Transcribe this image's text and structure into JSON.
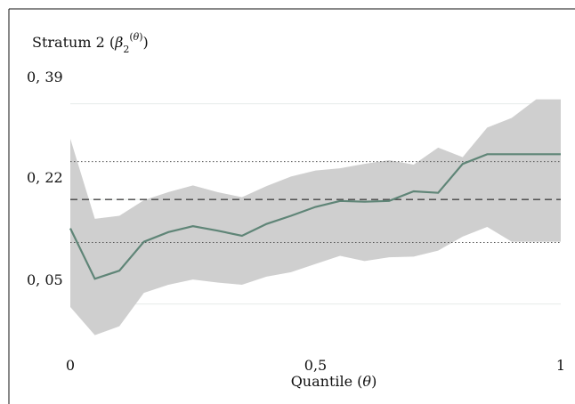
{
  "chart_data": {
    "type": "line",
    "title": "Stratum 2 (β₂^(θ))",
    "xlabel": "Quantile (θ)",
    "ylabel": "",
    "xlim": [
      0,
      1
    ],
    "ylim": [
      -0.012,
      0.33
    ],
    "x_ticks": [
      {
        "value": 0,
        "label": "0"
      },
      {
        "value": 0.5,
        "label": "0,5"
      },
      {
        "value": 1,
        "label": "1"
      }
    ],
    "y_ticks": [
      {
        "value": 0.05,
        "label": "0, 05"
      },
      {
        "value": 0.22,
        "label": "0, 22"
      },
      {
        "value": 0.39,
        "label": "0, 39"
      }
    ],
    "x": [
      0,
      0.05,
      0.1,
      0.15,
      0.2,
      0.25,
      0.3,
      0.35,
      0.4,
      0.45,
      0.5,
      0.55,
      0.6,
      0.65,
      0.7,
      0.75,
      0.8,
      0.85,
      0.9,
      0.95,
      1
    ],
    "series": [
      {
        "role": "estimate",
        "color": "#5f8577",
        "values": [
          0.142,
          0.074,
          0.085,
          0.124,
          0.137,
          0.145,
          0.139,
          0.132,
          0.148,
          0.159,
          0.171,
          0.179,
          0.178,
          0.179,
          0.192,
          0.19,
          0.229,
          0.242,
          0.242,
          0.242,
          0.242
        ]
      }
    ],
    "band": {
      "color": "#cfcfcf",
      "lower": [
        0.036,
        -0.002,
        0.01,
        0.055,
        0.066,
        0.073,
        0.069,
        0.066,
        0.077,
        0.083,
        0.094,
        0.105,
        0.098,
        0.103,
        0.104,
        0.112,
        0.131,
        0.144,
        0.124,
        0.124,
        0.124
      ],
      "upper": [
        0.263,
        0.155,
        0.159,
        0.18,
        0.191,
        0.2,
        0.191,
        0.184,
        0.199,
        0.212,
        0.22,
        0.223,
        0.229,
        0.234,
        0.228,
        0.251,
        0.238,
        0.278,
        0.291,
        0.316,
        0.316
      ]
    },
    "reference_lines": [
      {
        "value": 0.181,
        "style": "dashed"
      },
      {
        "value": 0.232,
        "style": "dotted"
      },
      {
        "value": 0.123,
        "style": "dotted"
      }
    ],
    "grid": true,
    "legend": "none"
  }
}
